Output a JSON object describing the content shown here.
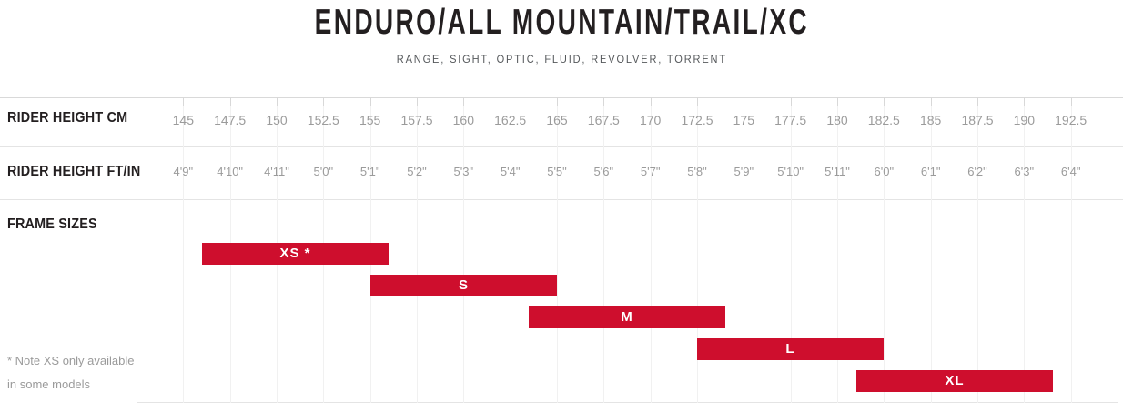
{
  "header": {
    "title": "ENDURO/ALL MOUNTAIN/TRAIL/XC",
    "subtitle": "RANGE, SIGHT, OPTIC, FLUID, REVOLVER, TORRENT"
  },
  "rows": {
    "cm_label": "RIDER HEIGHT CM",
    "ftin_label": "RIDER HEIGHT FT/IN",
    "frame_label": "FRAME SIZES"
  },
  "note": "* Note XS only available in some models",
  "colors": {
    "bar": "#ce0e2d",
    "bar_text": "#ffffff",
    "axis_text": "#9b9b9b",
    "label_text": "#231f20"
  },
  "chart_data": {
    "type": "bar",
    "subtype": "horizontal-range-gantt",
    "title": "ENDURO/ALL MOUNTAIN/TRAIL/XC",
    "subtitle": "RANGE, SIGHT, OPTIC, FLUID, REVOLVER, TORRENT",
    "axis_rows": [
      "RIDER HEIGHT CM",
      "RIDER HEIGHT FT/IN"
    ],
    "y_group_label": "FRAME SIZES",
    "x_axis": {
      "cm": [
        145,
        147.5,
        150,
        152.5,
        155,
        157.5,
        160,
        162.5,
        165,
        167.5,
        170,
        172.5,
        175,
        177.5,
        180,
        182.5,
        185,
        187.5,
        190,
        192.5
      ],
      "ftin": [
        "4'9\"",
        "4'10\"",
        "4'11\"",
        "5'0\"",
        "5'1\"",
        "5'2\"",
        "5'3\"",
        "5'4\"",
        "5'5\"",
        "5'6\"",
        "5'7\"",
        "5'8\"",
        "5'9\"",
        "5'10\"",
        "5'11\"",
        "6'0\"",
        "6'1\"",
        "6'2\"",
        "6'3\"",
        "6'4\""
      ]
    },
    "xlim_cm": [
      142.5,
      195
    ],
    "grid": true,
    "bars": [
      {
        "size": "XS",
        "label": "XS *",
        "cm_min": 146,
        "cm_max": 156
      },
      {
        "size": "S",
        "label": "S",
        "cm_min": 155,
        "cm_max": 165
      },
      {
        "size": "M",
        "label": "M",
        "cm_min": 163.5,
        "cm_max": 174
      },
      {
        "size": "L",
        "label": "L",
        "cm_min": 172.5,
        "cm_max": 182.5
      },
      {
        "size": "XL",
        "label": "XL",
        "cm_min": 181,
        "cm_max": 191.5
      }
    ],
    "note": "* Note XS only available in some models"
  }
}
